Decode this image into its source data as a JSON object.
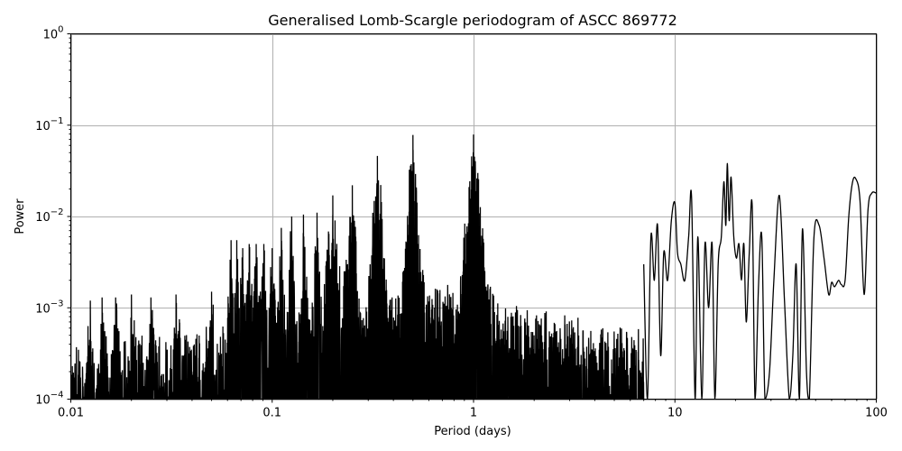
{
  "chart_data": {
    "type": "line",
    "title": "Generalised Lomb-Scargle periodogram of ASCC 869772",
    "xlabel": "Period (days)",
    "ylabel": "Power",
    "xscale": "log",
    "yscale": "log",
    "xlim": [
      0.01,
      100
    ],
    "ylim": [
      0.0001,
      1
    ],
    "grid": true,
    "legend": null,
    "x_ticks": [
      0.01,
      0.1,
      1,
      10,
      100
    ],
    "x_tick_labels": [
      "0.01",
      "0.1",
      "1",
      "10",
      "100"
    ],
    "y_ticks": [
      0.0001,
      0.001,
      0.01,
      0.1,
      1
    ],
    "y_tick_labels": [
      "10^-4",
      "10^-3",
      "10^-2",
      "10^-1",
      "10^0"
    ],
    "line_color": "#000000",
    "notable_peaks": [
      {
        "period": 0.0125,
        "power": 0.0012
      },
      {
        "period": 0.0143,
        "power": 0.0013
      },
      {
        "period": 0.0167,
        "power": 0.0013
      },
      {
        "period": 0.02,
        "power": 0.0014
      },
      {
        "period": 0.025,
        "power": 0.0013
      },
      {
        "period": 0.0333,
        "power": 0.0014
      },
      {
        "period": 0.05,
        "power": 0.0015
      },
      {
        "period": 0.0625,
        "power": 0.0055
      },
      {
        "period": 0.0667,
        "power": 0.0055
      },
      {
        "period": 0.0714,
        "power": 0.0045
      },
      {
        "period": 0.0769,
        "power": 0.005
      },
      {
        "period": 0.0833,
        "power": 0.005
      },
      {
        "period": 0.0909,
        "power": 0.005
      },
      {
        "period": 0.1,
        "power": 0.0045
      },
      {
        "period": 0.111,
        "power": 0.0075
      },
      {
        "period": 0.125,
        "power": 0.01
      },
      {
        "period": 0.143,
        "power": 0.0105
      },
      {
        "period": 0.167,
        "power": 0.011
      },
      {
        "period": 0.2,
        "power": 0.017
      },
      {
        "period": 0.25,
        "power": 0.022
      },
      {
        "period": 0.333,
        "power": 0.046
      },
      {
        "period": 0.5,
        "power": 0.078
      },
      {
        "period": 0.95,
        "power": 0.021
      },
      {
        "period": 1.0,
        "power": 0.079
      },
      {
        "period": 1.05,
        "power": 0.03
      },
      {
        "period": 10.0,
        "power": 0.014
      },
      {
        "period": 12.0,
        "power": 0.016
      },
      {
        "period": 17.5,
        "power": 0.024
      },
      {
        "period": 18.2,
        "power": 0.038
      },
      {
        "period": 19.0,
        "power": 0.027
      },
      {
        "period": 24.0,
        "power": 0.013
      },
      {
        "period": 33.0,
        "power": 0.017
      },
      {
        "period": 43.0,
        "power": 0.0073
      },
      {
        "period": 50.0,
        "power": 0.0082
      },
      {
        "period": 60.0,
        "power": 0.002
      },
      {
        "period": 79.0,
        "power": 0.026
      },
      {
        "period": 100.0,
        "power": 0.018
      }
    ],
    "smooth_tail": {
      "description": "Smooth oscillating curve for periods > ~7 days",
      "points": [
        [
          7.0,
          0.003
        ],
        [
          7.3,
          0.0001
        ],
        [
          7.6,
          0.006
        ],
        [
          7.9,
          0.002
        ],
        [
          8.2,
          0.008
        ],
        [
          8.5,
          0.0003
        ],
        [
          8.8,
          0.004
        ],
        [
          9.2,
          0.002
        ],
        [
          9.6,
          0.009
        ],
        [
          10.0,
          0.014
        ],
        [
          10.3,
          0.004
        ],
        [
          10.7,
          0.003
        ],
        [
          11.2,
          0.002
        ],
        [
          11.7,
          0.006
        ],
        [
          12.1,
          0.016
        ],
        [
          12.6,
          0.0001
        ],
        [
          13.0,
          0.006
        ],
        [
          13.6,
          0.0001
        ],
        [
          14.1,
          0.005
        ],
        [
          14.7,
          0.001
        ],
        [
          15.3,
          0.005
        ],
        [
          15.8,
          0.0001
        ],
        [
          16.4,
          0.003
        ],
        [
          17.0,
          0.006
        ],
        [
          17.5,
          0.024
        ],
        [
          17.9,
          0.008
        ],
        [
          18.2,
          0.038
        ],
        [
          18.6,
          0.009
        ],
        [
          19.0,
          0.027
        ],
        [
          19.6,
          0.006
        ],
        [
          20.2,
          0.0035
        ],
        [
          20.8,
          0.005
        ],
        [
          21.4,
          0.002
        ],
        [
          22.0,
          0.005
        ],
        [
          22.6,
          0.0007
        ],
        [
          23.4,
          0.004
        ],
        [
          24.2,
          0.013
        ],
        [
          25.0,
          0.0001
        ],
        [
          26.0,
          0.0017
        ],
        [
          27.0,
          0.006
        ],
        [
          28.0,
          0.0001
        ],
        [
          29.5,
          0.0002
        ],
        [
          31.0,
          0.002
        ],
        [
          33.0,
          0.017
        ],
        [
          35.0,
          0.0012
        ],
        [
          37.0,
          0.0001
        ],
        [
          38.5,
          0.0003
        ],
        [
          40.0,
          0.003
        ],
        [
          41.5,
          0.0001
        ],
        [
          43.0,
          0.0073
        ],
        [
          45.0,
          0.0002
        ],
        [
          46.5,
          0.0001
        ],
        [
          49.0,
          0.0058
        ],
        [
          52.0,
          0.008
        ],
        [
          55.0,
          0.0035
        ],
        [
          58.0,
          0.0014
        ],
        [
          60.0,
          0.0019
        ],
        [
          62.0,
          0.0017
        ],
        [
          65.0,
          0.002
        ],
        [
          67.0,
          0.0018
        ],
        [
          70.0,
          0.002
        ],
        [
          73.0,
          0.01
        ],
        [
          76.0,
          0.023
        ],
        [
          79.0,
          0.026
        ],
        [
          83.0,
          0.015
        ],
        [
          87.0,
          0.0014
        ],
        [
          91.0,
          0.012
        ],
        [
          95.0,
          0.018
        ],
        [
          100.0,
          0.018
        ]
      ]
    }
  }
}
